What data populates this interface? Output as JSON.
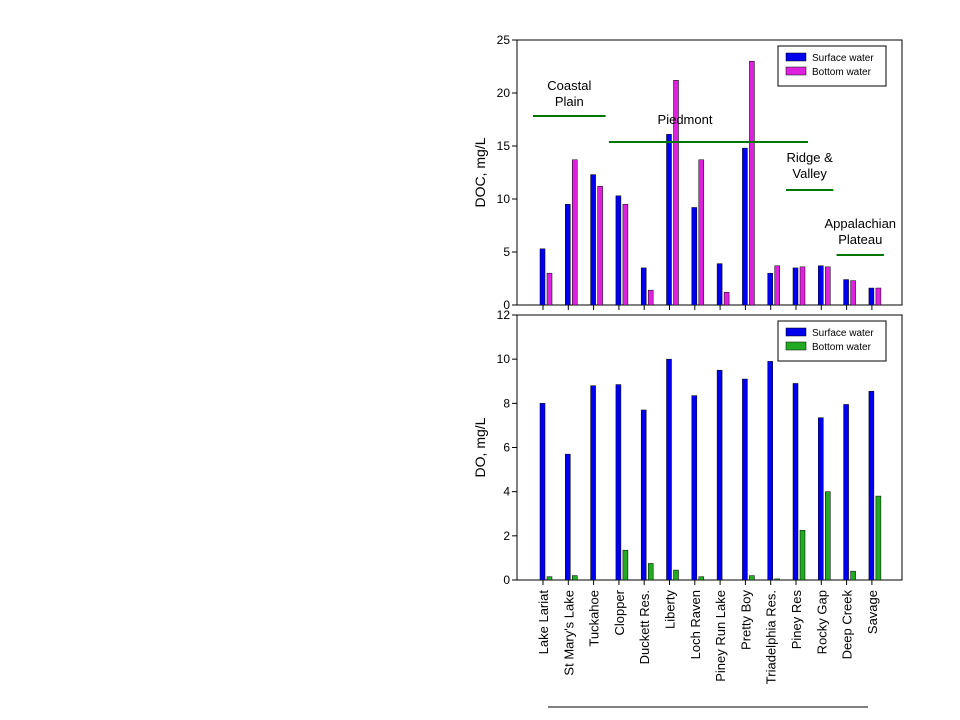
{
  "chart_data": [
    {
      "type": "bar",
      "ylabel": "DOC, mg/L",
      "ylim": [
        0,
        25
      ],
      "yticks": [
        0,
        5,
        10,
        15,
        20,
        25
      ],
      "legend_placement": "top-right",
      "categories": [
        "Lake Lariat",
        "St Mary's Lake",
        "Tuckahoe",
        "Clopper",
        "Duckett Res.",
        "Liberty",
        "Loch Raven",
        "Piney Run Lake",
        "Pretty Boy",
        "Triadelphia Res.",
        "Piney Res",
        "Rocky Gap",
        "Deep Creek",
        "Savage"
      ],
      "series": [
        {
          "name": "Surface water",
          "color": "#0000ee",
          "values": [
            5.3,
            9.5,
            12.3,
            10.3,
            3.5,
            16.1,
            9.2,
            3.9,
            14.8,
            3.0,
            3.5,
            3.7,
            2.4,
            1.6
          ]
        },
        {
          "name": "Bottom water",
          "color": "#dd22dd",
          "values": [
            3.0,
            13.7,
            11.2,
            9.5,
            1.4,
            21.2,
            13.7,
            1.2,
            23.0,
            3.7,
            3.6,
            3.6,
            2.3,
            1.6
          ]
        }
      ],
      "annotations": [
        {
          "text": [
            "Coastal",
            "Plain"
          ],
          "line_from": 0,
          "line_to": 2
        },
        {
          "text": [
            "Piedmont"
          ],
          "line_from": 3,
          "line_to": 10
        },
        {
          "text": [
            "Ridge &",
            "Valley"
          ],
          "line_from": 10,
          "line_to": 11
        },
        {
          "text": [
            "Appalachian",
            "Plateau"
          ],
          "line_from": 12,
          "line_to": 13
        }
      ],
      "annotation_color": "#007700"
    },
    {
      "type": "bar",
      "ylabel": "DO, mg/L",
      "ylim": [
        0,
        12
      ],
      "yticks": [
        0,
        2,
        4,
        6,
        8,
        10,
        12
      ],
      "legend_placement": "top-right",
      "categories": [
        "Lake Lariat",
        "St Mary's Lake",
        "Tuckahoe",
        "Clopper",
        "Duckett Res.",
        "Liberty",
        "Loch Raven",
        "Piney Run Lake",
        "Pretty Boy",
        "Triadelphia Res.",
        "Piney Res",
        "Rocky Gap",
        "Deep Creek",
        "Savage"
      ],
      "series": [
        {
          "name": "Surface water",
          "color": "#0000ee",
          "values": [
            8.0,
            5.7,
            8.8,
            8.85,
            7.7,
            10.0,
            8.35,
            9.5,
            9.1,
            9.9,
            8.9,
            7.35,
            7.95,
            8.55
          ]
        },
        {
          "name": "Bottom water",
          "color": "#22aa22",
          "values": [
            0.15,
            0.2,
            0,
            1.35,
            0.75,
            0.45,
            0.15,
            0,
            0.2,
            0.05,
            2.25,
            4.0,
            0.4,
            3.8
          ]
        }
      ]
    }
  ]
}
